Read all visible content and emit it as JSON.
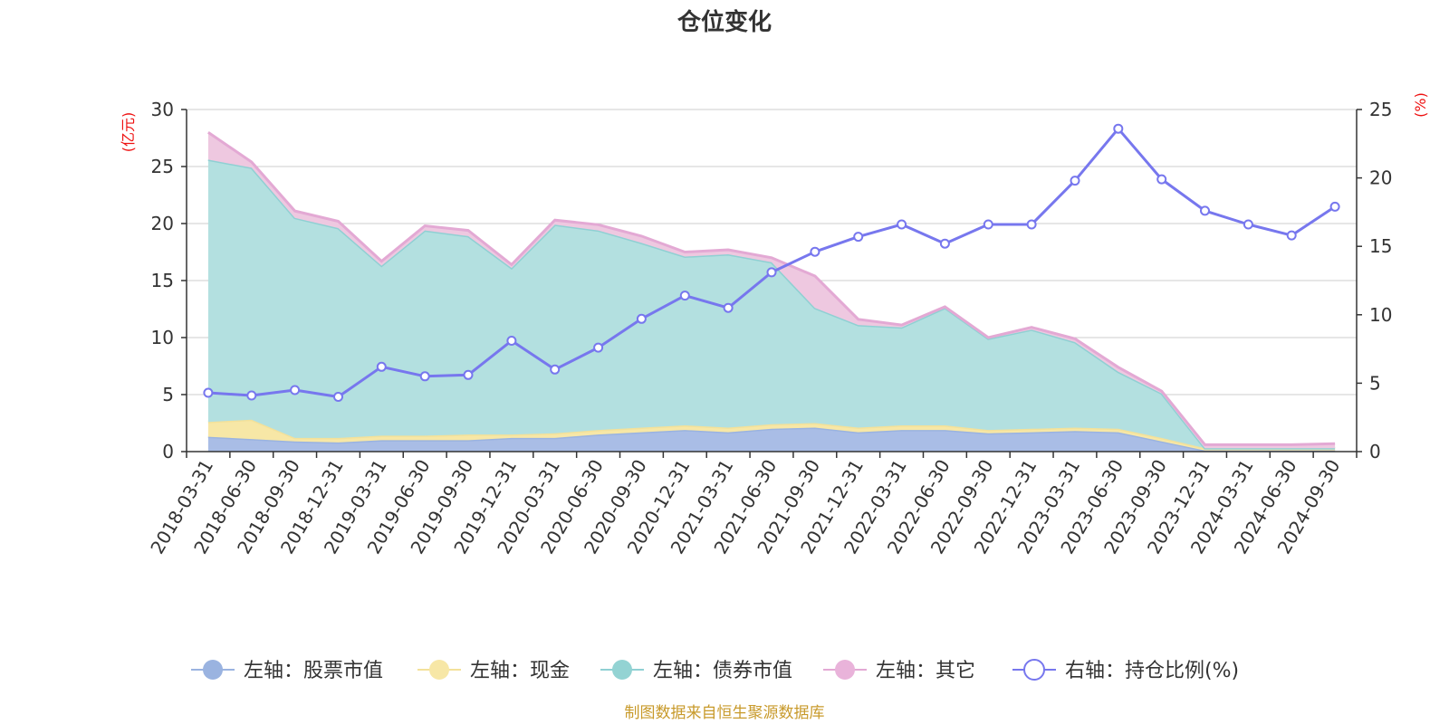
{
  "title": "仓位变化",
  "source": "制图数据来自恒生聚源数据库",
  "colors": {
    "stock": "#a9bde6",
    "stock_line": "#9ab3e0",
    "cash": "#f7e7a6",
    "cash_line": "#f3e19a",
    "bond": "#b3e0e0",
    "bond_line": "#8fd0d3",
    "other": "#eec8e0",
    "other_line": "#e3a9d4",
    "ratio": "#7777ee",
    "unit": "#ee1111",
    "source": "#c89a2b",
    "grid": "#cccccc",
    "axis": "#333333"
  },
  "chart_data": {
    "type": "area",
    "categories": [
      "2018-03-31",
      "2018-06-30",
      "2018-09-30",
      "2018-12-31",
      "2019-03-31",
      "2019-06-30",
      "2019-09-30",
      "2019-12-31",
      "2020-03-31",
      "2020-06-30",
      "2020-09-30",
      "2020-12-31",
      "2021-03-31",
      "2021-06-30",
      "2021-09-30",
      "2021-12-31",
      "2022-03-31",
      "2022-06-30",
      "2022-09-30",
      "2022-12-31",
      "2023-03-31",
      "2023-06-30",
      "2023-09-30",
      "2023-12-31",
      "2024-03-31",
      "2024-06-30",
      "2024-09-30"
    ],
    "left_axis": {
      "unit": "(亿元)",
      "ylim": [
        0,
        30
      ],
      "ticks": [
        0,
        5,
        10,
        15,
        20,
        25,
        30
      ]
    },
    "right_axis": {
      "unit": "(%)",
      "ylim": [
        0,
        25
      ],
      "ticks": [
        0,
        5,
        10,
        15,
        20,
        25
      ]
    },
    "grid": true,
    "legend_position": "bottom",
    "stacked": true,
    "series": [
      {
        "key": "stock",
        "name": "左轴：股票市值",
        "axis": "left",
        "type": "area",
        "values": [
          1.3,
          1.1,
          0.9,
          0.8,
          1.0,
          1.0,
          1.0,
          1.2,
          1.2,
          1.5,
          1.7,
          1.9,
          1.7,
          2.0,
          2.1,
          1.7,
          1.9,
          1.9,
          1.6,
          1.7,
          1.8,
          1.7,
          0.9,
          0.1,
          0.1,
          0.1,
          0.1
        ]
      },
      {
        "key": "cash",
        "name": "左轴：现金",
        "axis": "left",
        "type": "area",
        "values": [
          1.3,
          1.7,
          0.3,
          0.4,
          0.4,
          0.4,
          0.5,
          0.3,
          0.4,
          0.4,
          0.4,
          0.4,
          0.4,
          0.4,
          0.4,
          0.4,
          0.4,
          0.4,
          0.3,
          0.3,
          0.3,
          0.3,
          0.3,
          0.2,
          0.2,
          0.2,
          0.2
        ]
      },
      {
        "key": "bond",
        "name": "左轴：债券市值",
        "axis": "left",
        "type": "area",
        "values": [
          23.0,
          22.1,
          19.3,
          18.4,
          14.9,
          18.0,
          17.4,
          14.6,
          18.3,
          17.5,
          16.2,
          14.8,
          15.2,
          14.2,
          10.1,
          9.0,
          8.6,
          10.3,
          8.0,
          8.7,
          7.5,
          5.0,
          3.9,
          0.0,
          0.0,
          0.0,
          0.0
        ]
      },
      {
        "key": "other",
        "name": "左轴：其它",
        "axis": "left",
        "type": "area",
        "values": [
          2.4,
          0.5,
          0.6,
          0.6,
          0.4,
          0.4,
          0.5,
          0.3,
          0.4,
          0.5,
          0.6,
          0.4,
          0.4,
          0.4,
          2.8,
          0.5,
          0.2,
          0.1,
          0.1,
          0.2,
          0.3,
          0.4,
          0.2,
          0.3,
          0.3,
          0.3,
          0.4
        ]
      },
      {
        "key": "ratio",
        "name": "右轴：持仓比例(%)",
        "axis": "right",
        "type": "line",
        "values": [
          4.3,
          4.1,
          4.5,
          4.0,
          6.2,
          5.5,
          5.6,
          8.1,
          6.0,
          7.6,
          9.7,
          11.4,
          10.5,
          13.1,
          14.6,
          15.7,
          16.6,
          15.2,
          16.6,
          16.6,
          19.8,
          23.6,
          19.9,
          17.6,
          16.6,
          15.8,
          17.9
        ]
      }
    ]
  }
}
